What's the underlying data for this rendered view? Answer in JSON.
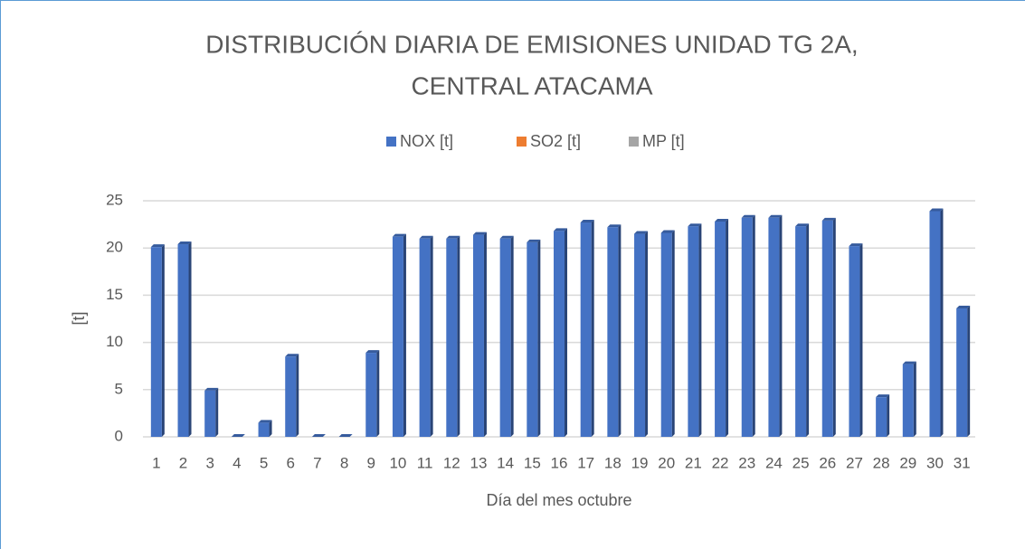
{
  "chart_data": {
    "type": "bar",
    "title": [
      "DISTRIBUCIÓN DIARIA DE EMISIONES UNIDAD TG 2A,",
      "CENTRAL ATACAMA"
    ],
    "x_label": "Día del mes octubre",
    "y_label": "[t]",
    "categories": [
      "1",
      "2",
      "3",
      "4",
      "5",
      "6",
      "7",
      "8",
      "9",
      "10",
      "11",
      "12",
      "13",
      "14",
      "15",
      "16",
      "17",
      "18",
      "19",
      "20",
      "21",
      "22",
      "23",
      "24",
      "25",
      "26",
      "27",
      "28",
      "29",
      "30",
      "31"
    ],
    "series": [
      {
        "name": "NOX [t]",
        "color": "#4472c4",
        "values": [
          20.1,
          20.4,
          4.9,
          0,
          1.5,
          8.5,
          0,
          0,
          8.9,
          21.2,
          21.0,
          21.0,
          21.4,
          21.0,
          20.6,
          21.8,
          22.7,
          22.2,
          21.5,
          21.6,
          22.3,
          22.8,
          23.2,
          23.2,
          22.3,
          22.9,
          20.2,
          4.2,
          7.7,
          23.9,
          13.6
        ]
      },
      {
        "name": "SO2 [t]",
        "color": "#ed7d31",
        "values": [
          0,
          0,
          0,
          0,
          0,
          0,
          0,
          0,
          0,
          0,
          0,
          0,
          0,
          0,
          0,
          0,
          0,
          0,
          0,
          0,
          0,
          0,
          0,
          0,
          0,
          0,
          0,
          0,
          0,
          0,
          0
        ]
      },
      {
        "name": "MP [t]",
        "color": "#a5a5a5",
        "values": [
          0,
          0,
          0,
          0,
          0,
          0,
          0,
          0,
          0,
          0,
          0,
          0,
          0,
          0,
          0,
          0,
          0,
          0,
          0,
          0,
          0,
          0,
          0,
          0,
          0,
          0,
          0,
          0,
          0,
          0,
          0
        ]
      }
    ],
    "ylim": [
      0,
      25
    ],
    "yticks": [
      0,
      5,
      10,
      15,
      20,
      25
    ],
    "grid": true,
    "legend": "top"
  }
}
